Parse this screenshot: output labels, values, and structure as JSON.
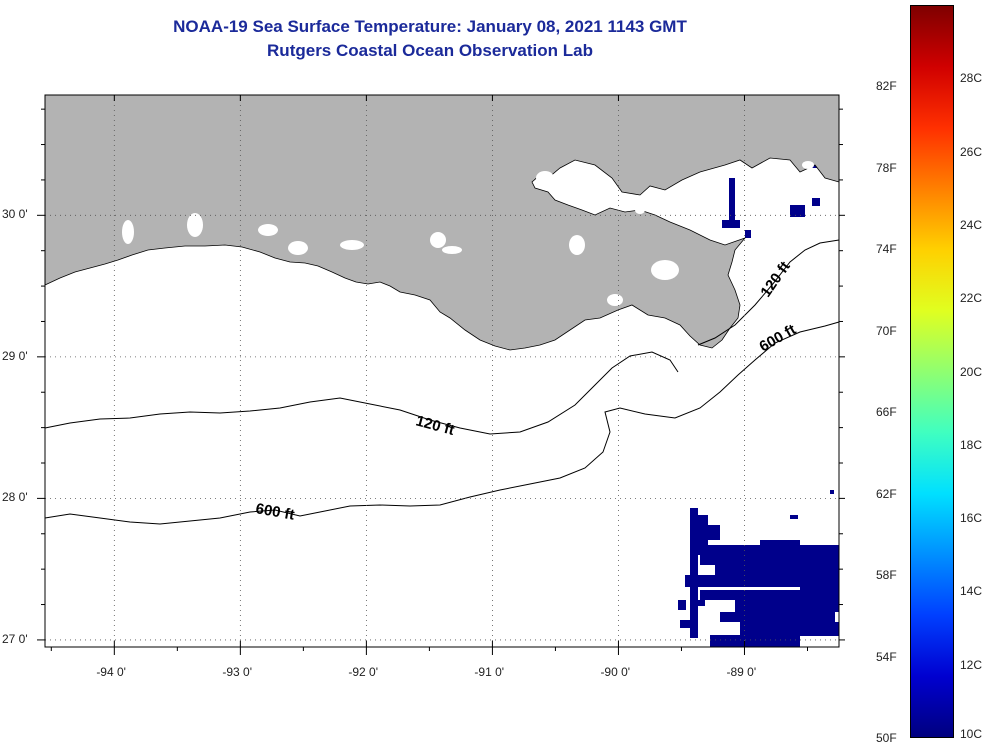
{
  "title": {
    "line1": "NOAA-19 Sea Surface Temperature:  January 08, 2021 1143 GMT",
    "line2": "Rutgers Coastal Ocean Observation Lab"
  },
  "map": {
    "lon_range": [
      -94.55,
      -88.25
    ],
    "lat_range": [
      26.95,
      30.85
    ],
    "lon_ticks": [
      {
        "value": -94,
        "label": "-94 0'"
      },
      {
        "value": -93,
        "label": "-93 0'"
      },
      {
        "value": -92,
        "label": "-92 0'"
      },
      {
        "value": -91,
        "label": "-91 0'"
      },
      {
        "value": -90,
        "label": "-90 0'"
      },
      {
        "value": -89,
        "label": "-89 0'"
      }
    ],
    "lat_ticks": [
      {
        "value": 30,
        "label": "30 0'"
      },
      {
        "value": 29,
        "label": "29 0'"
      },
      {
        "value": 28,
        "label": "28 0'"
      },
      {
        "value": 27,
        "label": "27 0'"
      }
    ],
    "land_color": "#b3b3b3",
    "ocean_color": "#ffffff",
    "cold_pixel_color": "#00008b",
    "contours": [
      {
        "label": "120 ft"
      },
      {
        "label": "120 ft"
      },
      {
        "label": "600 ft"
      },
      {
        "label": "600 ft"
      }
    ]
  },
  "colorbar": {
    "colors": [
      "#00007f",
      "#0000d0",
      "#0040ff",
      "#0090ff",
      "#00e0ff",
      "#40ffc0",
      "#90ff70",
      "#e0ff20",
      "#ffd000",
      "#ff8000",
      "#ff3000",
      "#d00000",
      "#7f0000"
    ],
    "fahrenheit_labels": [
      "82F",
      "78F",
      "74F",
      "70F",
      "66F",
      "62F",
      "58F",
      "54F",
      "50F"
    ],
    "celsius_labels": [
      "28C",
      "26C",
      "24C",
      "22C",
      "20C",
      "18C",
      "16C",
      "14C",
      "12C",
      "10C"
    ]
  }
}
